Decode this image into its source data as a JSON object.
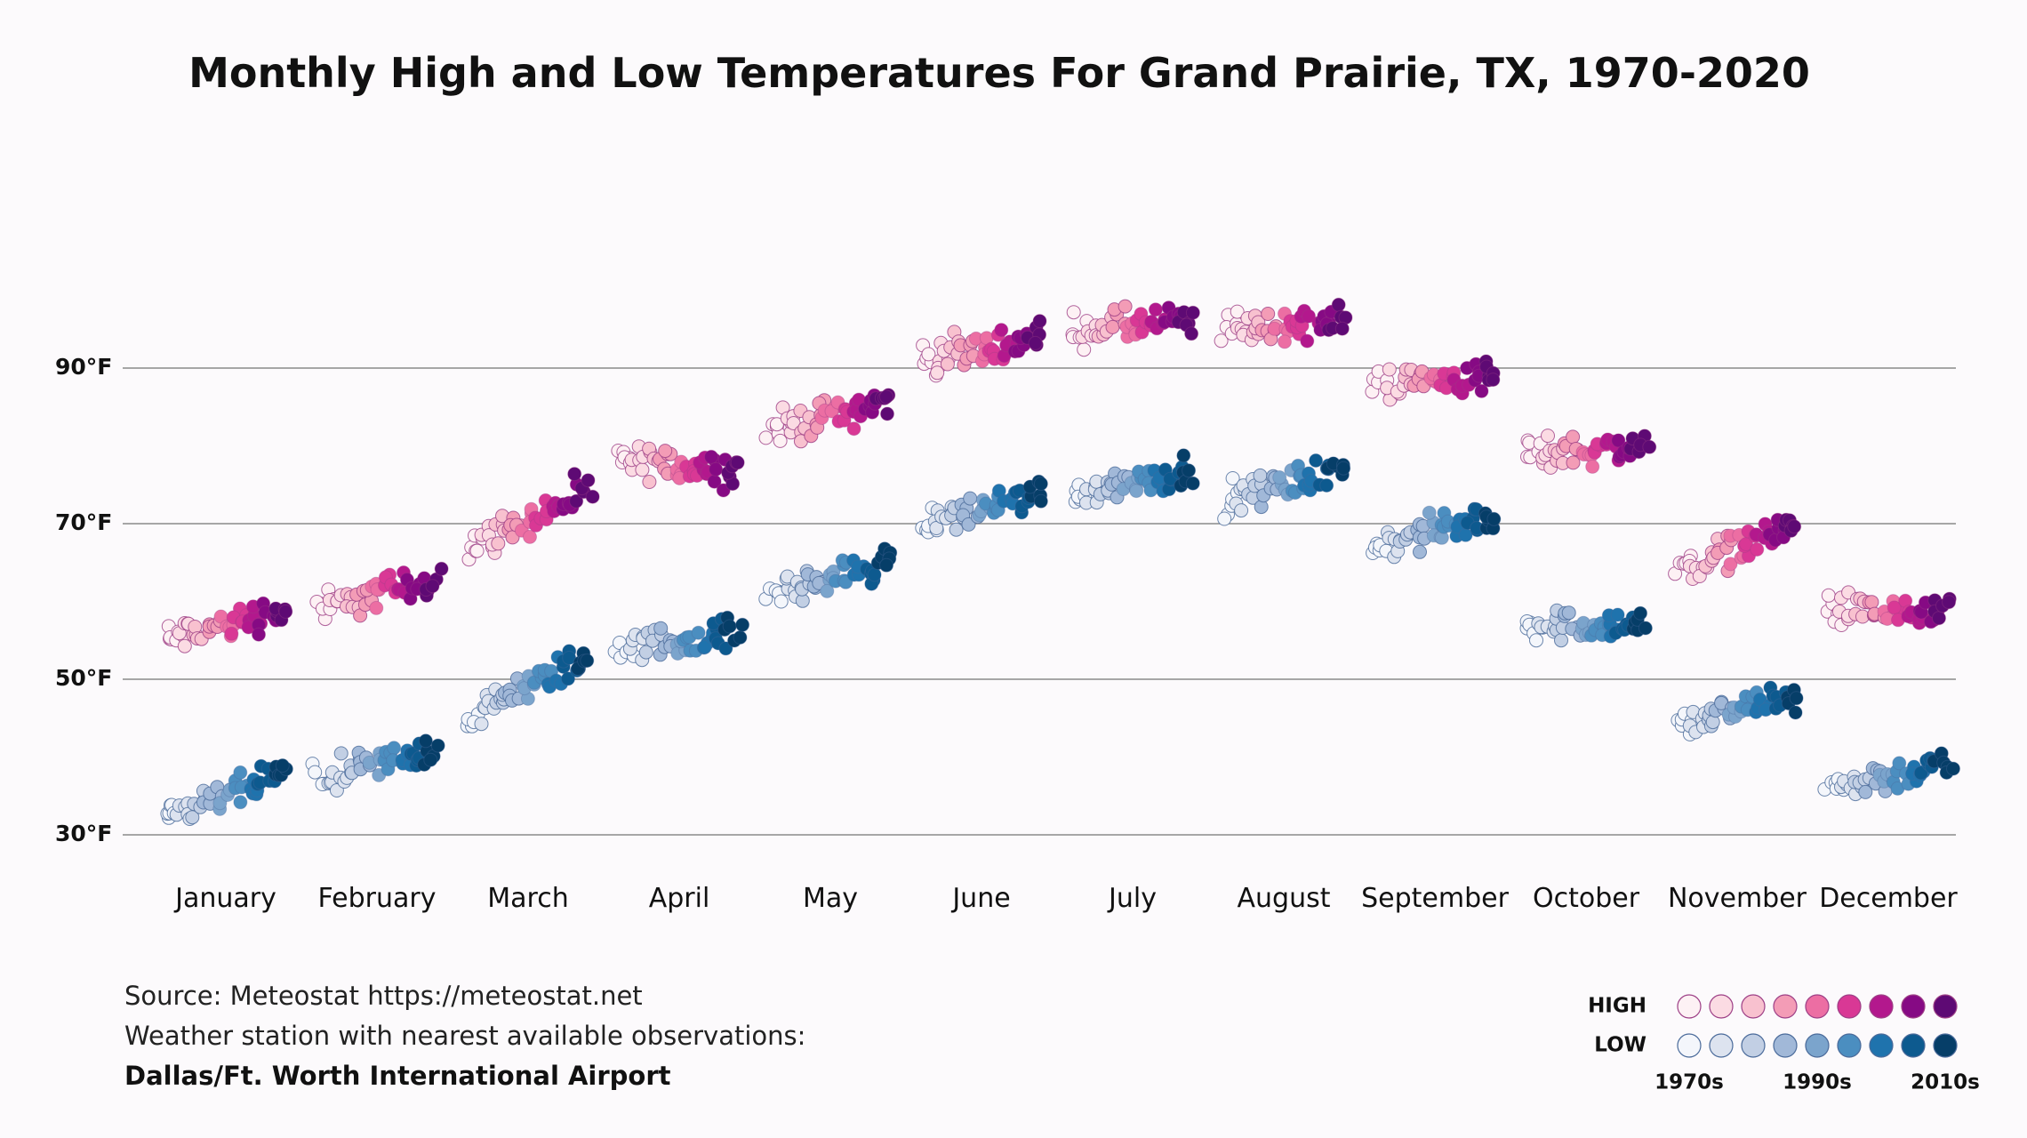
{
  "chart_data": {
    "type": "scatter",
    "title": "Monthly High and Low Temperatures For Grand Prairie, TX, 1970-2020",
    "xlabel": "",
    "ylabel": "",
    "ylim": [
      24,
      96
    ],
    "y_ticks": [
      30,
      50,
      70,
      90
    ],
    "y_tick_labels": [
      "30°F",
      "50°F",
      "70°F",
      "90°F"
    ],
    "grid": true,
    "categories": [
      "January",
      "February",
      "March",
      "April",
      "May",
      "June",
      "July",
      "August",
      "September",
      "October",
      "November",
      "December"
    ],
    "years": [
      1970,
      2020
    ],
    "series": [
      {
        "name": "HIGH",
        "start_values": [
          55,
          59,
          67,
          78,
          82,
          91,
          95,
          95,
          88,
          79,
          64,
          59
        ],
        "end_values": [
          59,
          63,
          74,
          77,
          86,
          94,
          96,
          96,
          89,
          80,
          70,
          58
        ],
        "colors": [
          "#fdf1f4",
          "#fbdbe3",
          "#f8c1cf",
          "#f39cb6",
          "#ec6ea3",
          "#d93895",
          "#b3188d",
          "#860a84",
          "#5e0a74"
        ]
      },
      {
        "name": "LOW",
        "start_values": [
          32,
          37,
          45,
          54,
          61,
          70,
          74,
          73,
          67,
          57,
          44,
          36
        ],
        "end_values": [
          38,
          41,
          53,
          56,
          65,
          74,
          77,
          77,
          71,
          57,
          48,
          39
        ],
        "colors": [
          "#f4f6fb",
          "#dde3ef",
          "#c2cfe4",
          "#a1b8d8",
          "#7ba4cc",
          "#4b8ec0",
          "#1f73ad",
          "#0d5a8f",
          "#063e68"
        ]
      }
    ]
  },
  "source": {
    "line1": "Source: Meteostat https://meteostat.net",
    "line2": "Weather station with nearest available observations:",
    "line3": "Dallas/Ft. Worth International Airport"
  },
  "legend": {
    "high_label": "HIGH",
    "low_label": "LOW",
    "decade_labels": [
      "1970s",
      "1990s",
      "2010s"
    ]
  }
}
